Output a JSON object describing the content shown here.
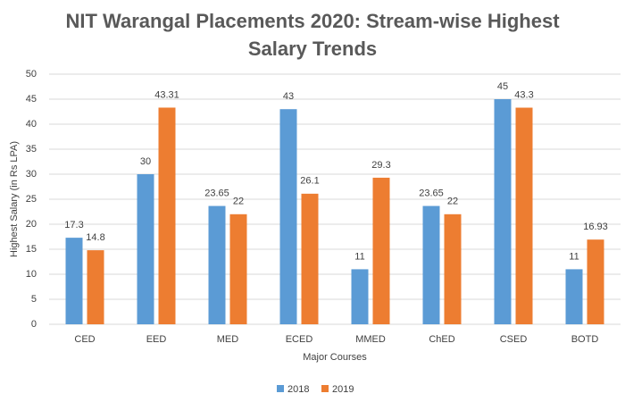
{
  "chart_data": {
    "type": "bar",
    "title": "NIT Warangal Placements 2020: Stream-wise Highest Salary Trends",
    "x_label": "Major Courses",
    "y_label": "Highest Salary (in Rs LPA)",
    "categories": [
      "CED",
      "EED",
      "MED",
      "ECED",
      "MMED",
      "ChED",
      "CSED",
      "BOTD"
    ],
    "series": [
      {
        "name": "2018",
        "color": "#5b9bd5",
        "values": [
          17.3,
          30,
          23.65,
          43,
          11,
          23.65,
          45,
          11
        ]
      },
      {
        "name": "2019",
        "color": "#ed7d31",
        "values": [
          14.8,
          43.31,
          22,
          26.1,
          29.3,
          22,
          43.3,
          16.93
        ]
      }
    ],
    "ylim": [
      0,
      50
    ],
    "yticks": [
      0,
      5,
      10,
      15,
      20,
      25,
      30,
      35,
      40,
      45,
      50
    ],
    "grid": true,
    "legend": "bottom"
  }
}
